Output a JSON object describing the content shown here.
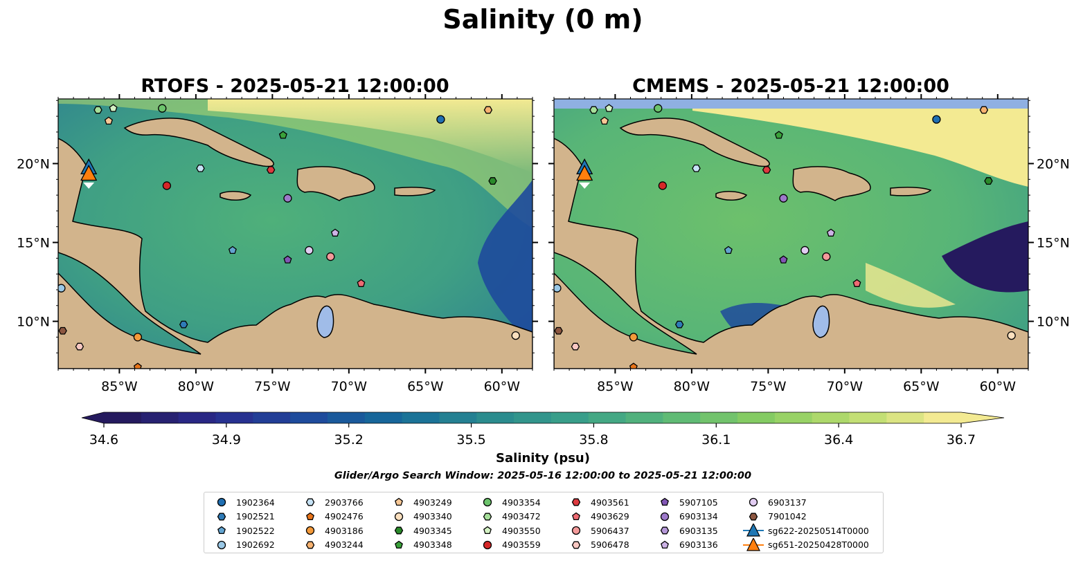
{
  "figure": {
    "title": "Salinity (0 m)",
    "left_map": {
      "title": "RTOFS - 2025-05-21 12:00:00"
    },
    "right_map": {
      "title": "CMEMS - 2025-05-21 12:00:00"
    },
    "lon_labels": [
      "85°W",
      "80°W",
      "75°W",
      "70°W",
      "65°W",
      "60°W"
    ],
    "lon_values": [
      -85,
      -80,
      -75,
      -70,
      -65,
      -60
    ],
    "lat_labels": [
      "20°N",
      "15°N",
      "10°N"
    ],
    "lat_values": [
      20,
      15,
      10
    ],
    "extent": {
      "lon": [
        -89,
        -58
      ],
      "lat": [
        7,
        24.1
      ]
    },
    "colorbar": {
      "label": "Salinity (psu)",
      "ticks": [
        "34.6",
        "34.9",
        "35.2",
        "35.5",
        "35.8",
        "36.1",
        "36.4",
        "36.7"
      ],
      "range": [
        34.6,
        36.7
      ],
      "colors": [
        "#251a5e",
        "#2a2a8c",
        "#1e4a9c",
        "#166a9a",
        "#2a8a8e",
        "#3aa08a",
        "#5ab878",
        "#86cc62",
        "#b8dc6e",
        "#f3ea92"
      ]
    },
    "search_window": "Glider/Argo Search Window: 2025-05-16 12:00:00 to 2025-05-21 12:00:00"
  },
  "colors": {
    "land": "#d2b48c",
    "ocean_deep": "#251a5e",
    "lake": "#a0bce8",
    "nodata": "#8fb0e2"
  },
  "legend": [
    {
      "label": "1902364",
      "marker": "circle",
      "color": "#1f6fb2"
    },
    {
      "label": "1902521",
      "marker": "hexagon",
      "color": "#2f7bb7"
    },
    {
      "label": "1902522",
      "marker": "pentagon",
      "color": "#63a4d0"
    },
    {
      "label": "1902692",
      "marker": "circle",
      "color": "#9ac8e6"
    },
    {
      "label": "2903766",
      "marker": "hexagon",
      "color": "#c6e2f5"
    },
    {
      "label": "4902476",
      "marker": "pentagon",
      "color": "#e8741a"
    },
    {
      "label": "4903186",
      "marker": "circle",
      "color": "#f49a3a"
    },
    {
      "label": "4903244",
      "marker": "hexagon",
      "color": "#f7b270"
    },
    {
      "label": "4903249",
      "marker": "pentagon",
      "color": "#f8c896"
    },
    {
      "label": "4903340",
      "marker": "circle",
      "color": "#fbe0bf"
    },
    {
      "label": "4903345",
      "marker": "hexagon",
      "color": "#2a8a2a"
    },
    {
      "label": "4903348",
      "marker": "pentagon",
      "color": "#3aa13a"
    },
    {
      "label": "4903354",
      "marker": "circle",
      "color": "#6cc46c"
    },
    {
      "label": "4903472",
      "marker": "hexagon",
      "color": "#a6df9a"
    },
    {
      "label": "4903550",
      "marker": "pentagon",
      "color": "#d4f2c4"
    },
    {
      "label": "4903559",
      "marker": "circle",
      "color": "#d62728"
    },
    {
      "label": "4903561",
      "marker": "hexagon",
      "color": "#dd3a3f"
    },
    {
      "label": "4903629",
      "marker": "pentagon",
      "color": "#ee6b73"
    },
    {
      "label": "5906437",
      "marker": "circle",
      "color": "#f39a9a"
    },
    {
      "label": "5906478",
      "marker": "hexagon",
      "color": "#f9c8c2"
    },
    {
      "label": "5907105",
      "marker": "pentagon",
      "color": "#8256b5"
    },
    {
      "label": "6903134",
      "marker": "circle",
      "color": "#9d79c9"
    },
    {
      "label": "6903135",
      "marker": "hexagon",
      "color": "#b597d8"
    },
    {
      "label": "6903136",
      "marker": "pentagon",
      "color": "#cdb3e6"
    },
    {
      "label": "6903137",
      "marker": "circle",
      "color": "#e2cdf2"
    },
    {
      "label": "7901042",
      "marker": "hexagon",
      "color": "#8c5640"
    },
    {
      "label": "sg622-20250514T0000",
      "marker": "triangle-line",
      "color": "#1f77b4"
    },
    {
      "label": "sg651-20250428T0000",
      "marker": "triangle-line",
      "color": "#ff7f0e"
    }
  ],
  "floats": [
    {
      "id": "1902364",
      "lon": -64.0,
      "lat": 22.8
    },
    {
      "id": "4903244",
      "lon": -60.9,
      "lat": 23.4
    },
    {
      "id": "4903472",
      "lon": -86.4,
      "lat": 23.4
    },
    {
      "id": "4903550",
      "lon": -85.4,
      "lat": 23.5
    },
    {
      "id": "4903354",
      "lon": -82.2,
      "lat": 23.5
    },
    {
      "id": "4903249",
      "lon": -85.7,
      "lat": 22.7
    },
    {
      "id": "4903348",
      "lon": -74.3,
      "lat": 21.8
    },
    {
      "id": "2903766",
      "lon": -79.7,
      "lat": 19.7
    },
    {
      "id": "4903561",
      "lon": -75.1,
      "lat": 19.6
    },
    {
      "id": "4903559",
      "lon": -81.9,
      "lat": 18.6
    },
    {
      "id": "4903345",
      "lon": -60.6,
      "lat": 18.9
    },
    {
      "id": "6903134",
      "lon": -74.0,
      "lat": 17.8
    },
    {
      "id": "6903136",
      "lon": -70.9,
      "lat": 15.6
    },
    {
      "id": "1902522",
      "lon": -77.6,
      "lat": 14.5
    },
    {
      "id": "6903137",
      "lon": -72.6,
      "lat": 14.5
    },
    {
      "id": "5906437",
      "lon": -71.2,
      "lat": 14.1
    },
    {
      "id": "5907105",
      "lon": -74.0,
      "lat": 13.9
    },
    {
      "id": "4903629",
      "lon": -69.2,
      "lat": 12.4
    },
    {
      "id": "1902692",
      "lon": -88.8,
      "lat": 12.1
    },
    {
      "id": "1902521",
      "lon": -80.8,
      "lat": 9.8
    },
    {
      "id": "7901042",
      "lon": -88.7,
      "lat": 9.4
    },
    {
      "id": "4903186",
      "lon": -83.8,
      "lat": 9.0
    },
    {
      "id": "5906478",
      "lon": -87.6,
      "lat": 8.4
    },
    {
      "id": "4903340",
      "lon": -59.1,
      "lat": 9.1
    },
    {
      "id": "4902476",
      "lon": -83.8,
      "lat": 7.1
    }
  ],
  "gliders": [
    {
      "id": "sg622-20250514T0000",
      "lon": -87.0,
      "lat": 19.7,
      "color": "#1f77b4"
    },
    {
      "id": "sg651-20250428T0000",
      "lon": -87.0,
      "lat": 19.3,
      "color": "#ff7f0e"
    }
  ]
}
